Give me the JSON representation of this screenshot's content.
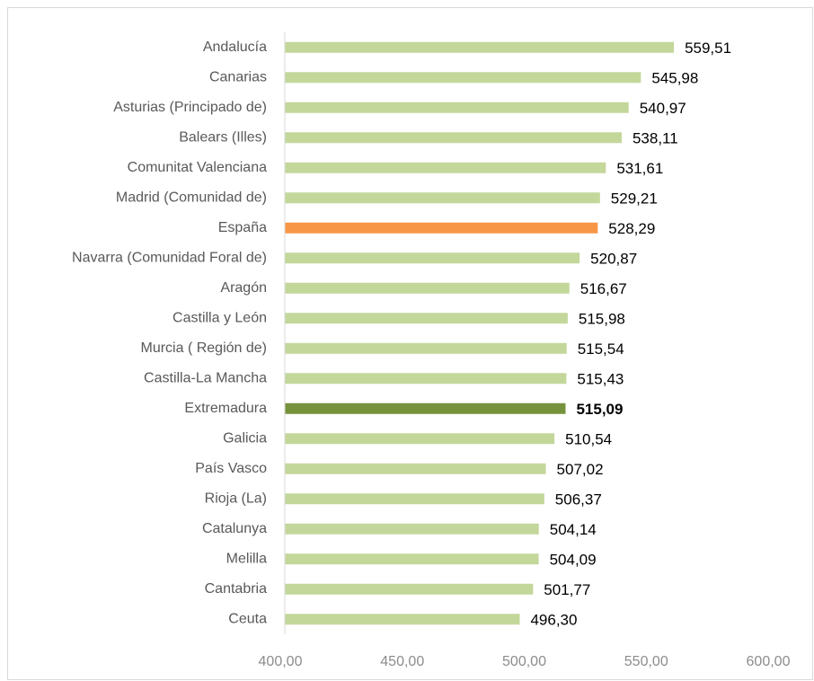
{
  "chart_data": {
    "type": "barh",
    "categories": [
      "Andalucía",
      "Canarias",
      "Asturias (Principado de)",
      "Balears (Illes)",
      "Comunitat Valenciana",
      "Madrid (Comunidad de)",
      "España",
      "Navarra (Comunidad Foral de)",
      "Aragón",
      "Castilla y León",
      "Murcia ( Región de)",
      "Castilla-La Mancha",
      "Extremadura",
      "Galicia",
      "País Vasco",
      "Rioja (La)",
      "Catalunya",
      "Melilla",
      "Cantabria",
      "Ceuta"
    ],
    "values": [
      559.51,
      545.98,
      540.97,
      538.11,
      531.61,
      529.21,
      528.29,
      520.87,
      516.67,
      515.98,
      515.54,
      515.43,
      515.09,
      510.54,
      507.02,
      506.37,
      504.14,
      504.09,
      501.77,
      496.3
    ],
    "value_labels": [
      "559,51",
      "545,98",
      "540,97",
      "538,11",
      "531,61",
      "529,21",
      "528,29",
      "520,87",
      "516,67",
      "515,98",
      "515,54",
      "515,43",
      "515,09",
      "510,54",
      "507,02",
      "506,37",
      "504,14",
      "504,09",
      "501,77",
      "496,30"
    ],
    "colors": [
      "#c4d79b",
      "#c4d79b",
      "#c4d79b",
      "#c4d79b",
      "#c4d79b",
      "#c4d79b",
      "#f79646",
      "#c4d79b",
      "#c4d79b",
      "#c4d79b",
      "#c4d79b",
      "#c4d79b",
      "#76923c",
      "#c4d79b",
      "#c4d79b",
      "#c4d79b",
      "#c4d79b",
      "#c4d79b",
      "#c4d79b",
      "#c4d79b"
    ],
    "bold_categories": [
      "Extremadura"
    ],
    "xlim": [
      400,
      600
    ],
    "xticks": [
      {
        "value": 400,
        "label": "400,00"
      },
      {
        "value": 450,
        "label": "450,00"
      },
      {
        "value": 500,
        "label": "500,00"
      },
      {
        "value": 550,
        "label": "550,00"
      },
      {
        "value": 600,
        "label": "600,00"
      }
    ],
    "grid": false
  }
}
